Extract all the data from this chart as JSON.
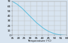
{
  "x_data": [
    15,
    17,
    19,
    21,
    23,
    25,
    27,
    29,
    31,
    33,
    35,
    37,
    39,
    41,
    43,
    45,
    47,
    49,
    51,
    53,
    55,
    57,
    60
  ],
  "y_data": [
    70,
    67,
    64,
    60,
    56,
    51,
    46,
    41,
    36,
    31,
    26,
    22,
    18,
    14,
    11,
    8,
    6,
    4,
    2.5,
    1.5,
    1,
    0.5,
    0
  ],
  "xlim": [
    15,
    60
  ],
  "ylim": [
    0,
    70
  ],
  "xticks": [
    15,
    20,
    25,
    30,
    35,
    40,
    45,
    50,
    55,
    60
  ],
  "yticks": [
    0,
    10,
    20,
    30,
    40,
    50,
    60,
    70
  ],
  "line_color": "#55bbdd",
  "line_width": 0.7,
  "grid_color": "#bbbbbb",
  "bg_color": "#d8e4f0",
  "tick_labelsize": 3.0,
  "xlabel": "Temperature (°C)",
  "ylabel": "",
  "xlabel_fontsize": 3.0,
  "ylabel_fontsize": 3.0
}
